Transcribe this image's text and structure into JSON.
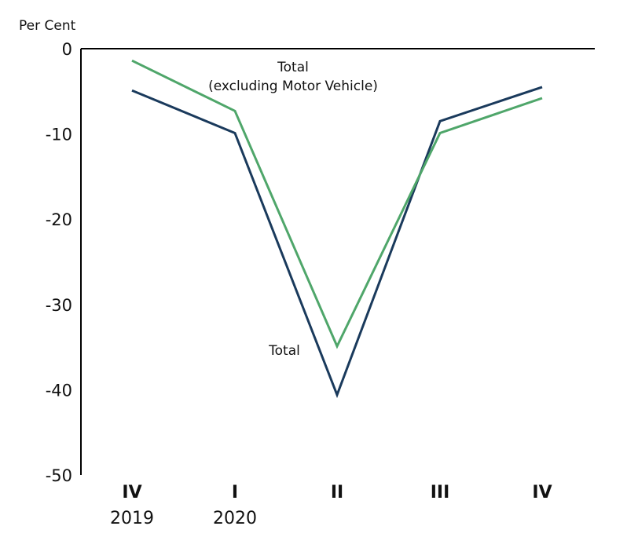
{
  "chart_data": {
    "type": "line",
    "ylabel": "Per Cent",
    "ylim": [
      -50,
      0
    ],
    "yticks": [
      0,
      -10,
      -20,
      -30,
      -40,
      -50
    ],
    "categories": [
      "IV",
      "I",
      "II",
      "III",
      "IV"
    ],
    "years": [
      "2019",
      "2020",
      "",
      "",
      ""
    ],
    "grid": false,
    "series": [
      {
        "name": "Total",
        "color": "#1a3a5c",
        "values": [
          -4.9,
          -9.9,
          -40.6,
          -8.5,
          -4.5
        ]
      },
      {
        "name": "Total (excluding Motor Vehicle)",
        "color": "#4fa66a",
        "values": [
          -1.4,
          -7.3,
          -34.9,
          -9.9,
          -5.8
        ]
      }
    ],
    "annotations": {
      "green_line1": "Total",
      "green_line2": "(excluding Motor Vehicle)",
      "navy": "Total"
    }
  }
}
